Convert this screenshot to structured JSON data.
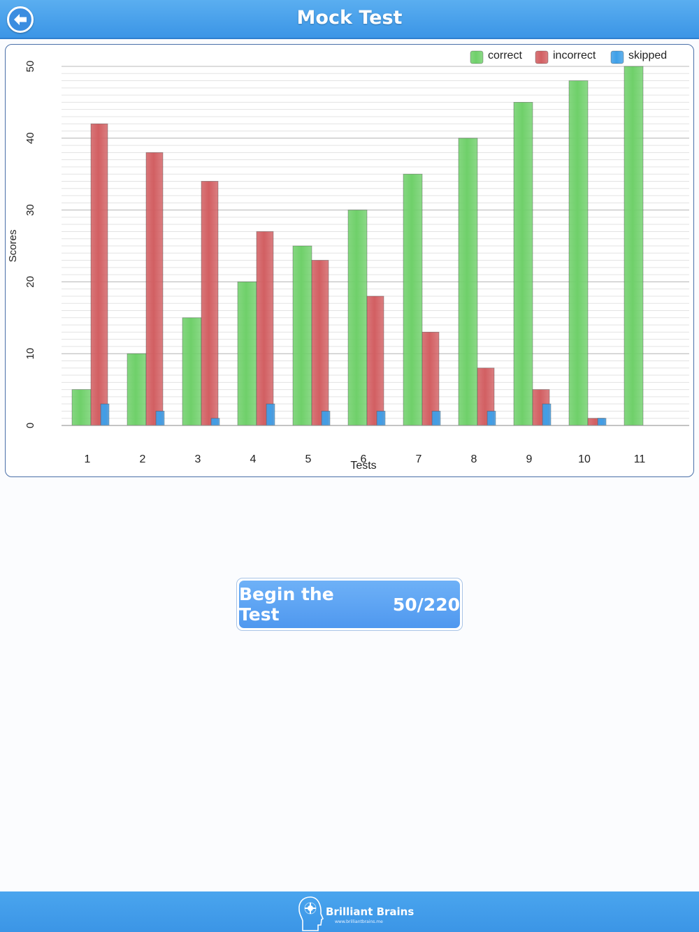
{
  "header": {
    "title": "Mock Test",
    "back_icon": "back-arrow-icon"
  },
  "chart_data": {
    "type": "bar",
    "title": "",
    "xlabel": "Tests",
    "ylabel": "Scores",
    "ylim": [
      0,
      50
    ],
    "yticks": [
      0,
      10,
      20,
      30,
      40,
      50
    ],
    "grid": true,
    "legend_position": "top-right",
    "categories": [
      "1",
      "2",
      "3",
      "4",
      "5",
      "6",
      "7",
      "8",
      "9",
      "10",
      "11"
    ],
    "series": [
      {
        "name": "correct",
        "color": "#6fd06a",
        "values": [
          5,
          10,
          15,
          20,
          25,
          30,
          35,
          40,
          45,
          48,
          50
        ]
      },
      {
        "name": "incorrect",
        "color": "#d25f62",
        "values": [
          42,
          38,
          34,
          27,
          23,
          18,
          13,
          8,
          5,
          1,
          0
        ]
      },
      {
        "name": "skipped",
        "color": "#3e9fe8",
        "values": [
          3,
          2,
          1,
          3,
          2,
          2,
          2,
          2,
          3,
          1,
          0
        ]
      }
    ]
  },
  "cta": {
    "label": "Begin the Test",
    "progress": "50/220"
  },
  "footer": {
    "brand_name": "Brilliant Brains",
    "brand_url": "www.brilliantbrains.me",
    "logo_icon": "brain-head-logo-icon"
  }
}
